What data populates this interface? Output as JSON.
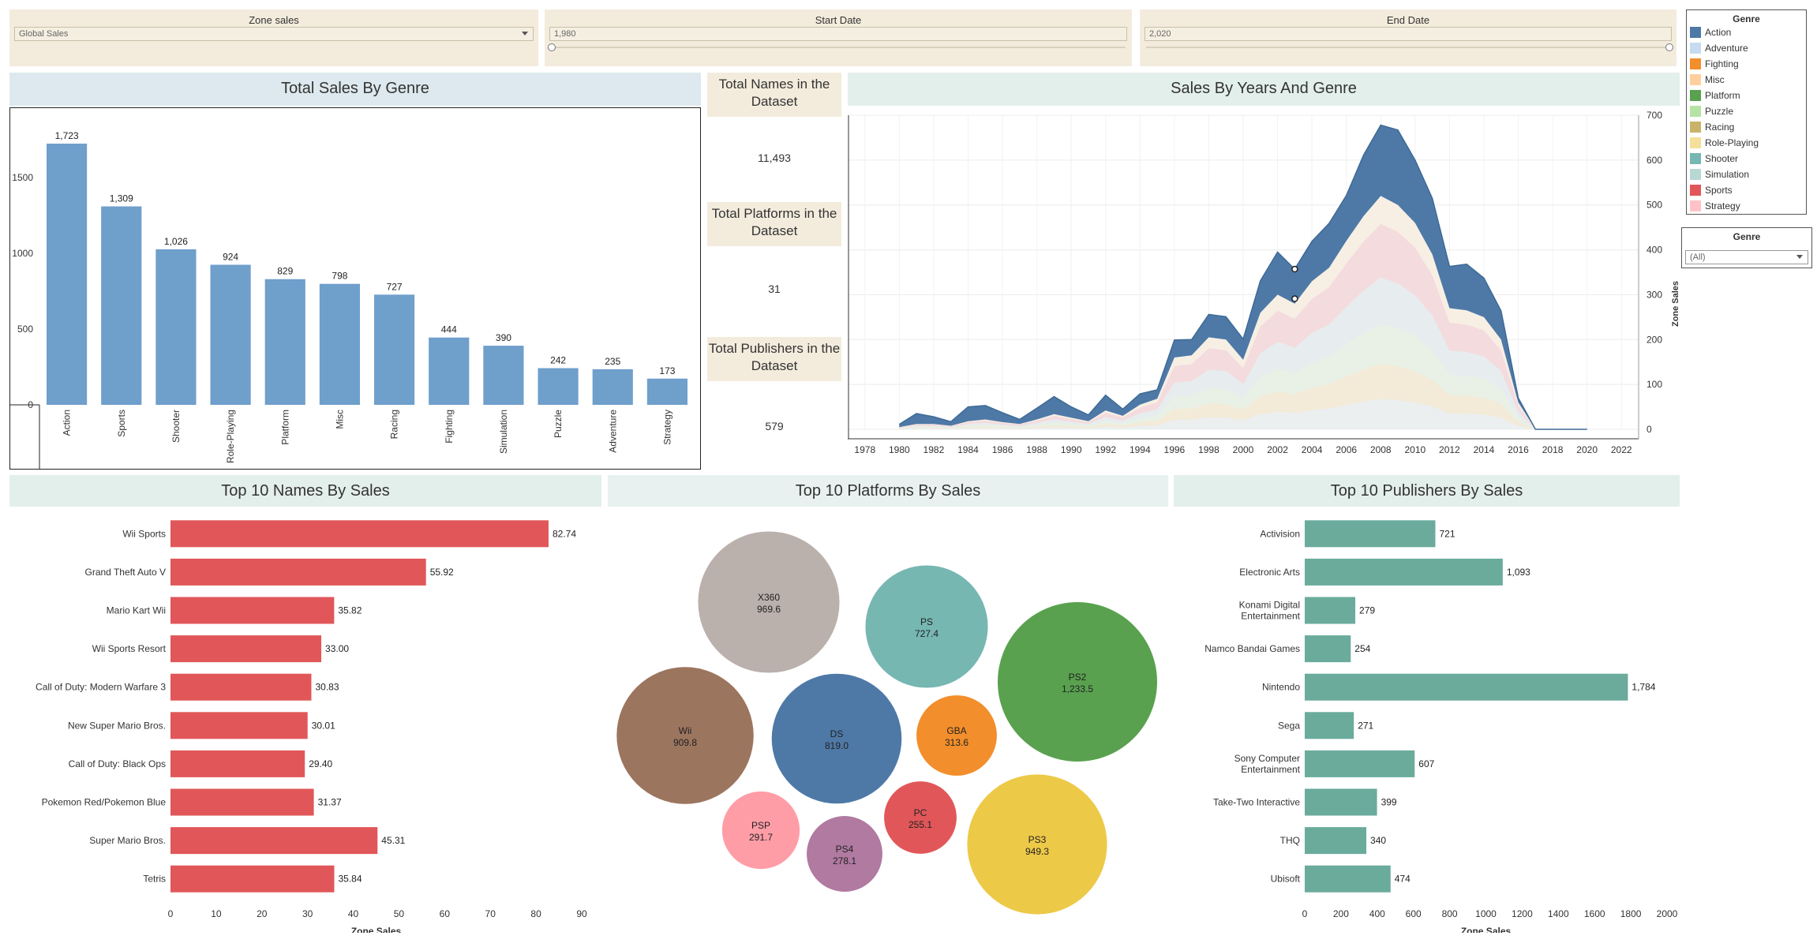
{
  "filters": {
    "zone": {
      "title": "Zone sales",
      "value": "Global Sales"
    },
    "start": {
      "title": "Start Date",
      "value": "1,980"
    },
    "end": {
      "title": "End Date",
      "value": "2,020"
    }
  },
  "legend_box": {
    "title": "Genre",
    "items": [
      {
        "label": "Action",
        "color": "#4e79a7"
      },
      {
        "label": "Adventure",
        "color": "#c6dbef"
      },
      {
        "label": "Fighting",
        "color": "#f28e2b"
      },
      {
        "label": "Misc",
        "color": "#ffcf9e"
      },
      {
        "label": "Platform",
        "color": "#59a14f"
      },
      {
        "label": "Puzzle",
        "color": "#b6e3a3"
      },
      {
        "label": "Racing",
        "color": "#c9b26a"
      },
      {
        "label": "Role-Playing",
        "color": "#f5df9a"
      },
      {
        "label": "Shooter",
        "color": "#76b7b2"
      },
      {
        "label": "Simulation",
        "color": "#b9d8d4"
      },
      {
        "label": "Sports",
        "color": "#e15759"
      },
      {
        "label": "Strategy",
        "color": "#ffc2c6"
      }
    ]
  },
  "genre_filter": {
    "title": "Genre",
    "value": "(All)"
  },
  "kpis": [
    {
      "label": "Total Names in the Dataset",
      "value": "11,493"
    },
    {
      "label": "Total Platforms in the Dataset",
      "value": "31"
    },
    {
      "label": "Total Publishers in the Dataset",
      "value": "579"
    }
  ],
  "titles": {
    "genre": "Total Sales By Genre",
    "years": "Sales By Years And Genre",
    "names": "Top 10 Names By Sales",
    "platforms": "Top 10 Platforms By Sales",
    "publishers": "Top 10 Publishers By Sales"
  },
  "chart_data": [
    {
      "id": "genre",
      "type": "bar",
      "title": "Total Sales By Genre",
      "categories": [
        "Action",
        "Sports",
        "Shooter",
        "Role-Playing",
        "Platform",
        "Misc",
        "Racing",
        "Fighting",
        "Simulation",
        "Puzzle",
        "Adventure",
        "Strategy"
      ],
      "values": [
        1723,
        1309,
        1026,
        924,
        829,
        798,
        727,
        444,
        390,
        242,
        235,
        173
      ],
      "labels": [
        "1,723",
        "1,309",
        "1,026",
        "924",
        "829",
        "798",
        "727",
        "444",
        "390",
        "242",
        "235",
        "173"
      ],
      "ylim": [
        0,
        1900
      ],
      "yticks": [
        0,
        500,
        1000,
        1500
      ],
      "color": "#6f9fcb"
    },
    {
      "id": "years",
      "type": "area",
      "title": "Sales By Years And Genre",
      "ylabel": "Zone Sales",
      "xlim": [
        1977,
        2023
      ],
      "ylim": [
        0,
        700
      ],
      "xticks": [
        1978,
        1980,
        1982,
        1984,
        1986,
        1988,
        1990,
        1992,
        1994,
        1996,
        1998,
        2000,
        2002,
        2004,
        2006,
        2008,
        2010,
        2012,
        2014,
        2016,
        2018,
        2020,
        2022
      ],
      "yticks": [
        0,
        100,
        200,
        300,
        400,
        500,
        600,
        700
      ],
      "x": [
        1980,
        1981,
        1982,
        1983,
        1984,
        1985,
        1986,
        1987,
        1988,
        1989,
        1990,
        1991,
        1992,
        1993,
        1994,
        1995,
        1996,
        1997,
        1998,
        1999,
        2000,
        2001,
        2002,
        2003,
        2004,
        2005,
        2006,
        2007,
        2008,
        2009,
        2010,
        2011,
        2012,
        2013,
        2014,
        2015,
        2016,
        2017,
        2018,
        2019,
        2020
      ],
      "total": [
        11,
        35,
        28,
        17,
        50,
        53,
        37,
        22,
        47,
        73,
        50,
        32,
        76,
        45,
        79,
        88,
        199,
        200,
        256,
        251,
        201,
        331,
        395,
        357,
        419,
        459,
        521,
        611,
        678,
        667,
        600,
        515,
        363,
        368,
        337,
        264,
        70,
        0,
        0,
        0,
        0
      ],
      "inner": [
        5,
        12,
        12,
        8,
        18,
        22,
        16,
        12,
        22,
        34,
        26,
        18,
        42,
        30,
        55,
        68,
        160,
        165,
        205,
        200,
        155,
        260,
        300,
        280,
        330,
        360,
        420,
        475,
        520,
        500,
        460,
        390,
        270,
        265,
        250,
        200,
        60,
        0,
        0,
        0,
        0
      ],
      "markers": [
        {
          "x": 2003,
          "y": 357
        },
        {
          "x": 2003,
          "y": 291
        }
      ]
    },
    {
      "id": "names",
      "type": "bar",
      "orientation": "horizontal",
      "title": "Top 10 Names By Sales",
      "xlabel": "Zone Sales",
      "categories": [
        "Wii Sports",
        "Grand Theft Auto V",
        "Mario Kart Wii",
        "Wii Sports Resort",
        "Call of Duty: Modern Warfare 3",
        "New Super Mario Bros.",
        "Call of Duty: Black Ops",
        "Pokemon Red/Pokemon Blue",
        "Super Mario Bros.",
        "Tetris"
      ],
      "values": [
        82.74,
        55.92,
        35.82,
        33.0,
        30.83,
        30.01,
        29.4,
        31.37,
        45.31,
        35.84
      ],
      "labels": [
        "82.74",
        "55.92",
        "35.82",
        "33.00",
        "30.83",
        "30.01",
        "29.40",
        "31.37",
        "45.31",
        "35.84"
      ],
      "xlim": [
        0,
        90
      ],
      "xticks": [
        0,
        10,
        20,
        30,
        40,
        50,
        60,
        70,
        80,
        90
      ],
      "color": "#e15759"
    },
    {
      "id": "platforms",
      "type": "bubble",
      "title": "Top 10 Platforms By Sales",
      "items": [
        {
          "name": "X360",
          "value": 969.6,
          "label": "969.6",
          "color": "#bab0ac"
        },
        {
          "name": "PS",
          "value": 727.4,
          "label": "727.4",
          "color": "#76b7b2"
        },
        {
          "name": "PS2",
          "value": 1233.5,
          "label": "1,233.5",
          "color": "#59a14f"
        },
        {
          "name": "Wii",
          "value": 909.8,
          "label": "909.8",
          "color": "#9c755f"
        },
        {
          "name": "DS",
          "value": 819.0,
          "label": "819.0",
          "color": "#4e79a7"
        },
        {
          "name": "GBA",
          "value": 313.6,
          "label": "313.6",
          "color": "#f28e2b"
        },
        {
          "name": "PSP",
          "value": 291.7,
          "label": "291.7",
          "color": "#ff9da7"
        },
        {
          "name": "PS4",
          "value": 278.1,
          "label": "278.1",
          "color": "#b07aa1"
        },
        {
          "name": "PC",
          "value": 255.1,
          "label": "255.1",
          "color": "#e15759"
        },
        {
          "name": "PS3",
          "value": 949.3,
          "label": "949.3",
          "color": "#edc948"
        }
      ]
    },
    {
      "id": "publishers",
      "type": "bar",
      "orientation": "horizontal",
      "title": "Top 10 Publishers By Sales",
      "xlabel": "Zone Sales",
      "categories": [
        "Activision",
        "Electronic Arts",
        "Konami Digital Entertainment",
        "Namco Bandai Games",
        "Nintendo",
        "Sega",
        "Sony Computer Entertainment",
        "Take-Two Interactive",
        "THQ",
        "Ubisoft"
      ],
      "values": [
        721,
        1093,
        279,
        254,
        1784,
        271,
        607,
        399,
        340,
        474
      ],
      "labels": [
        "721",
        "1,093",
        "279",
        "254",
        "1,784",
        "271",
        "607",
        "399",
        "340",
        "474"
      ],
      "xlim": [
        0,
        2000
      ],
      "xticks": [
        0,
        200,
        400,
        600,
        800,
        1000,
        1200,
        1400,
        1600,
        1800,
        2000
      ],
      "color": "#6aab9c"
    }
  ]
}
